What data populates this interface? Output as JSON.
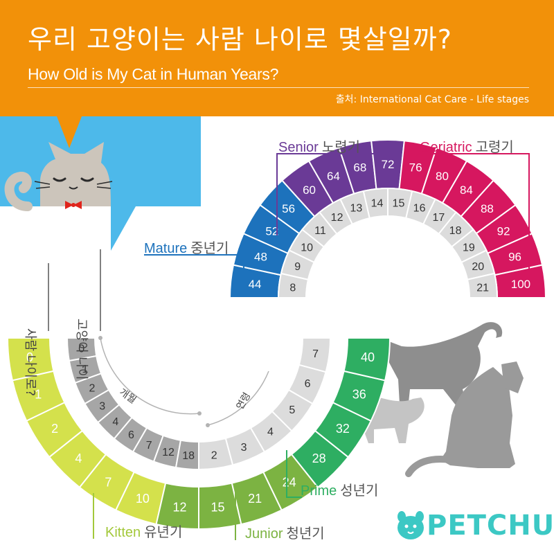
{
  "header": {
    "title_ko": "우리 고양이는 사람 나이로 몇살일까?",
    "title_en": "How Old is My Cat in Human Years?",
    "source": "출처: International Cat Care - Life stages"
  },
  "axis_labels": {
    "human_age": "사람 나이로?",
    "cat_age": "고양이 나이",
    "months": "개월",
    "years": "연령"
  },
  "stages": [
    {
      "en": "Kitten",
      "ko": "유년기",
      "color": "#a3c83a"
    },
    {
      "en": "Junior",
      "ko": "청년기",
      "color": "#7cb342"
    },
    {
      "en": "Prime",
      "ko": "성년기",
      "color": "#2eae62"
    },
    {
      "en": "Mature",
      "ko": "중년기",
      "color": "#1d72bc"
    },
    {
      "en": "Senior",
      "ko": "노령기",
      "color": "#6a3a96"
    },
    {
      "en": "Geriatric",
      "ko": "고령기",
      "color": "#d6175f"
    }
  ],
  "cat_months": [
    "0",
    "1",
    "2",
    "3",
    "4",
    "6",
    "7",
    "12",
    "18"
  ],
  "cat_years": [
    "2",
    "3",
    "4",
    "5",
    "6",
    "7",
    "8",
    "9",
    "10",
    "11",
    "12",
    "13",
    "14",
    "15",
    "16",
    "17",
    "18",
    "19",
    "20",
    "21"
  ],
  "human_bottom": {
    "kitten": [
      "0",
      "1",
      "2",
      "4",
      "7",
      "10"
    ],
    "junior": [
      "12",
      "15",
      "21",
      "24"
    ],
    "prime": [
      "28",
      "32",
      "36",
      "40"
    ]
  },
  "human_top": {
    "mature": [
      "44",
      "48",
      "52",
      "56"
    ],
    "senior": [
      "60",
      "64",
      "68",
      "72"
    ],
    "geriatric": [
      "76",
      "80",
      "84",
      "88",
      "92",
      "96",
      "100"
    ]
  },
  "brand": {
    "name": "PETCHU",
    "color": "#3cc8c4"
  }
}
